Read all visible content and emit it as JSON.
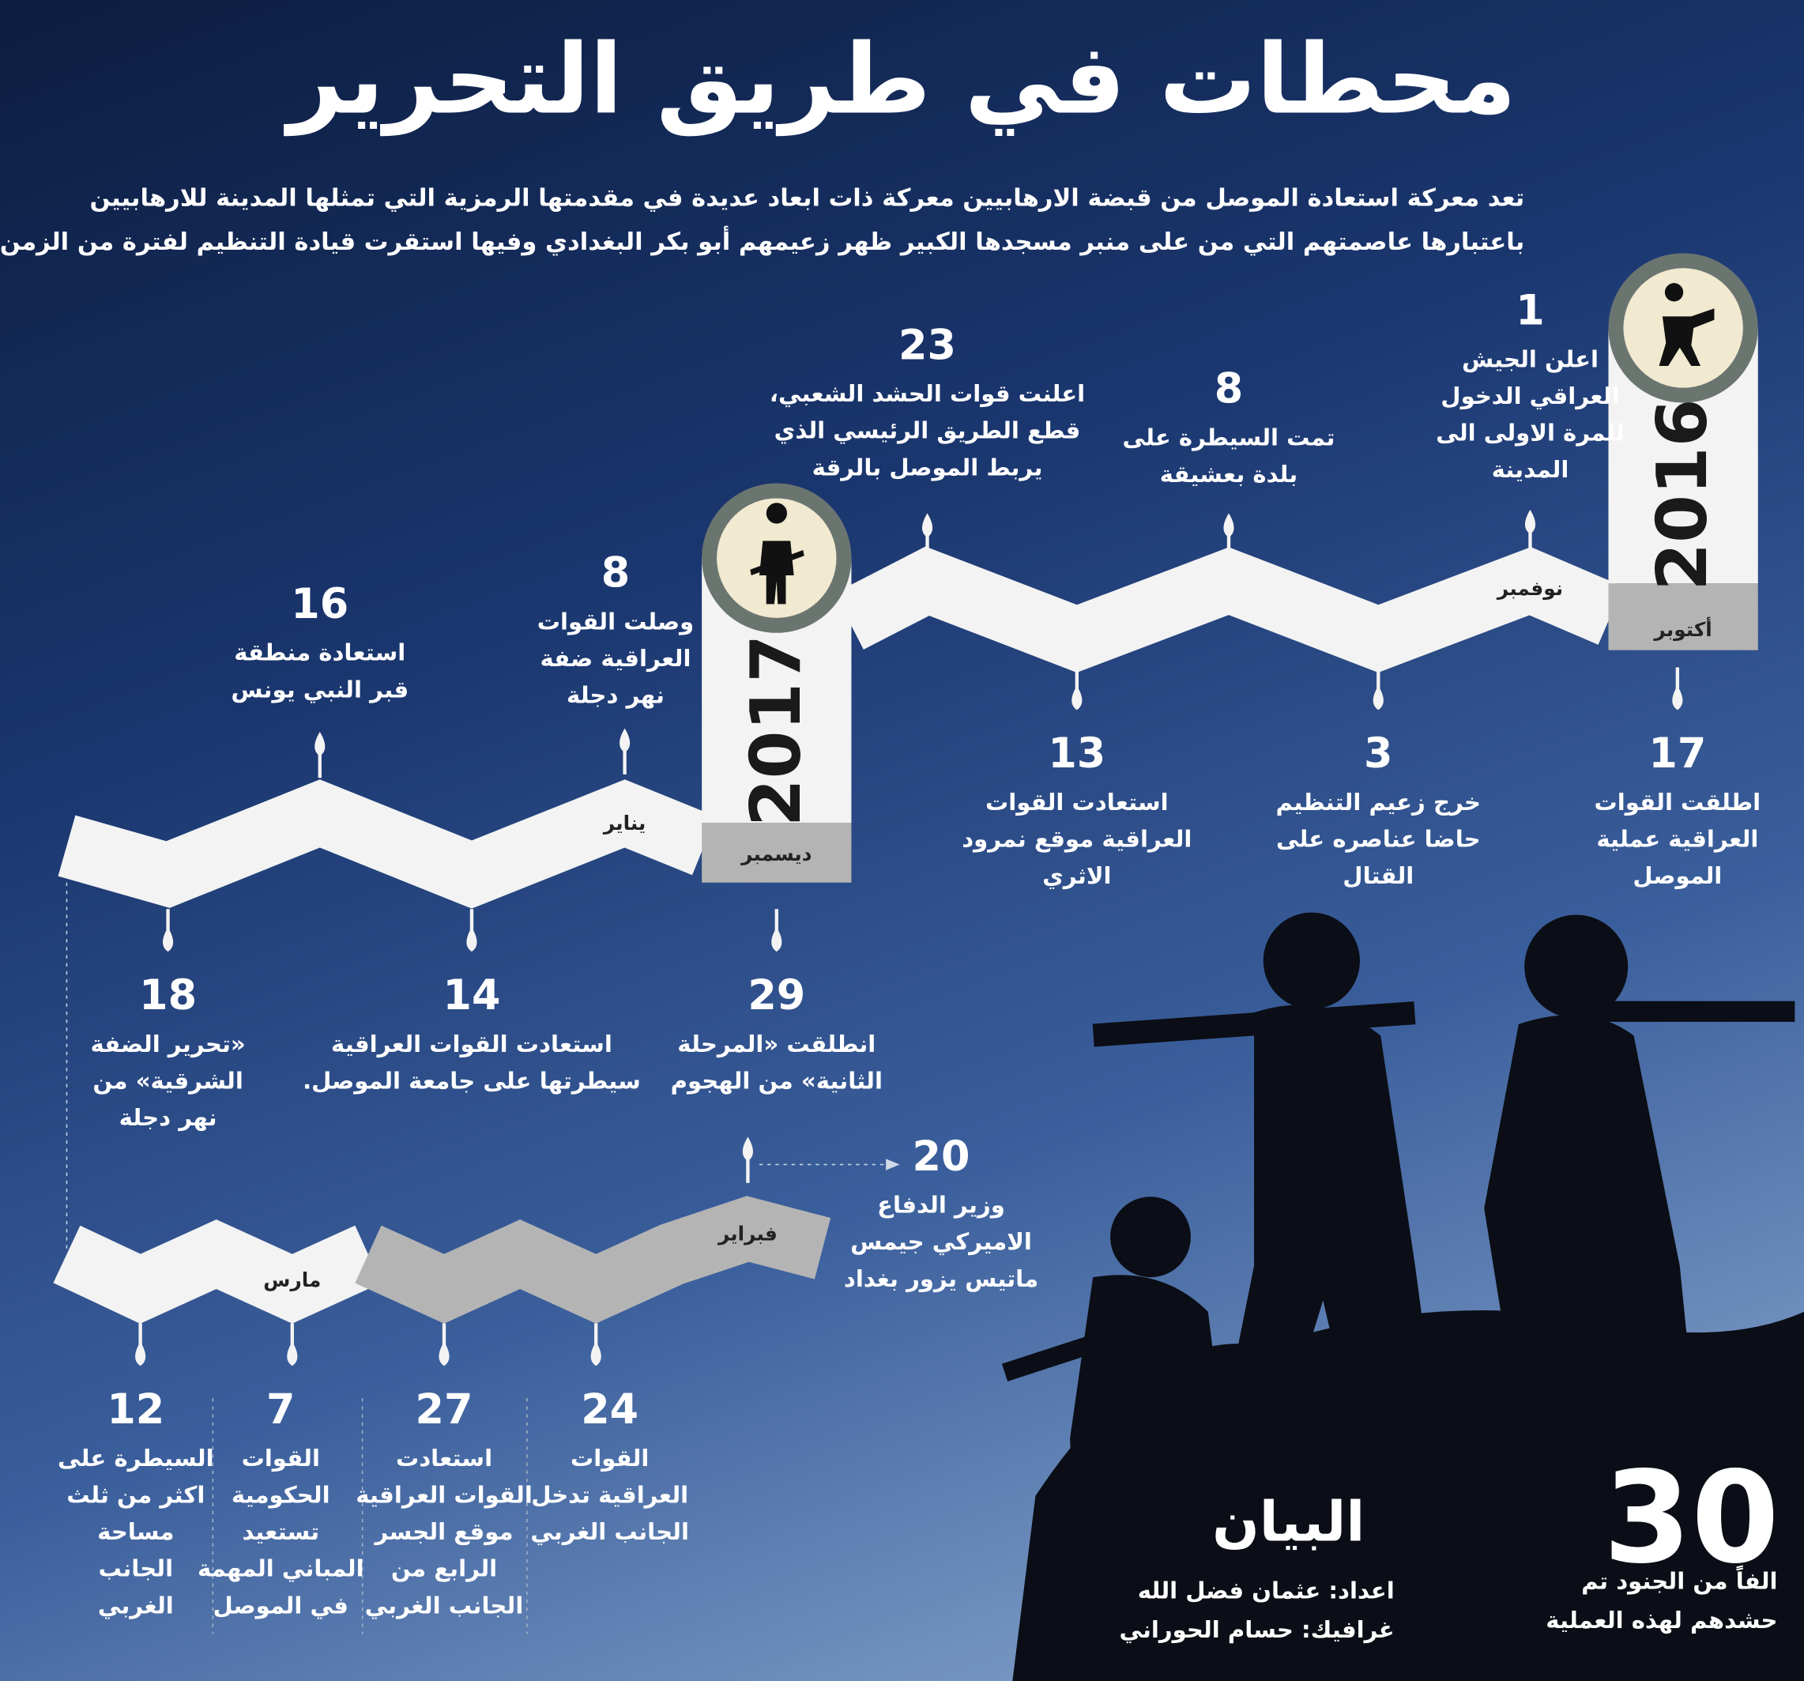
{
  "title": "محطات في طريق التحرير",
  "intro": [
    "تعد معركة استعادة الموصل من قبضة الارهابيين معركة ذات ابعاد عديدة في مقدمتها الرمزية التي تمثلها المدينة للارهابيين",
    "باعتبارها عاصمتهم التي من على منبر مسجدها الكبير ظهر زعيمهم أبو بكر البغدادي وفيها استقرت قيادة التنظيم لفترة من الزمن."
  ],
  "years": [
    2016,
    2017
  ],
  "months": [
    "أكتوبر",
    "نوفمبر",
    "ديسمبر",
    "يناير",
    "فبراير",
    "مارس"
  ],
  "events": [
    {
      "day": 17,
      "text": [
        "اطلقت القوات",
        "العراقية عملية",
        "الموصل"
      ]
    },
    {
      "day": 1,
      "text": [
        "اعلن الجيش",
        "العراقي الدخول",
        "للمرة الاولى الى",
        "المدينة"
      ]
    },
    {
      "day": 3,
      "text": [
        "خرج زعيم التنظيم",
        "حاضا عناصره على",
        "القتال"
      ]
    },
    {
      "day": 8,
      "text": [
        "تمت السيطرة على",
        "بلدة بعشيقة"
      ]
    },
    {
      "day": 13,
      "text": [
        "استعادت القوات",
        "العراقية موقع نمرود",
        "الاثري"
      ]
    },
    {
      "day": 23,
      "text": [
        "اعلنت قوات الحشد الشعبي،",
        "قطع الطريق الرئيسي الذي",
        "يربط الموصل بالرقة"
      ]
    },
    {
      "day": 29,
      "text": [
        "انطلقت «المرحلة",
        "الثانية» من الهجوم"
      ]
    },
    {
      "day": 8,
      "text": [
        "وصلت القوات",
        "العراقية ضفة",
        "نهر دجلة"
      ]
    },
    {
      "day": 14,
      "text": [
        "استعادت القوات العراقية",
        "سيطرتها على جامعة الموصل."
      ]
    },
    {
      "day": 16,
      "text": [
        "استعادة منطقة",
        "قبر النبي يونس"
      ]
    },
    {
      "day": 18,
      "text": [
        "«تحرير الضفة",
        "الشرقية» من",
        "نهر دجلة"
      ]
    },
    {
      "day": 20,
      "text": [
        "وزير الدفاع",
        "الاميركي جيمس",
        "ماتيس يزور بغداد"
      ]
    },
    {
      "day": 24,
      "text": [
        "القوات",
        "العراقية تدخل",
        "الجانب الغربي"
      ]
    },
    {
      "day": 27,
      "text": [
        "استعادت",
        "القوات العراقية",
        "موقع الجسر",
        "الرابع من",
        "الجانب الغربي"
      ]
    },
    {
      "day": 7,
      "text": [
        "القوات",
        "الحكومية",
        "تستعيد",
        "المباني المهمة",
        "في الموصل"
      ]
    },
    {
      "day": 12,
      "text": [
        "السيطرة على",
        "اكثر من ثلث",
        "مساحة",
        "الجانب",
        "الغربي"
      ]
    }
  ],
  "stat": {
    "number": 30,
    "text": [
      "الفاً من الجنود تم",
      "حشدهم لهذه العملية"
    ]
  },
  "logo": "البيان",
  "credits": [
    "اعداد: عثمان فضل الله",
    "غرافيك: حسام الحوراني"
  ]
}
